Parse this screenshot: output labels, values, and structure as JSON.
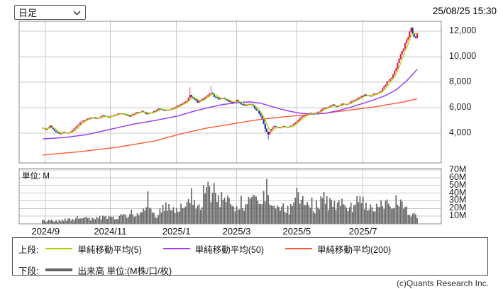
{
  "header": {
    "period_selector": {
      "value": "日足"
    },
    "timestamp": "25/08/25 15:30"
  },
  "footer": {
    "credit": "(c)Quants Research Inc."
  },
  "legend": {
    "upper_label": "上段:",
    "lower_label": "下段:",
    "ma_items": [
      {
        "label": "単純移動平均(5)",
        "color": "#a8d400"
      },
      {
        "label": "単純移動平均(50)",
        "color": "#9a3ff0"
      },
      {
        "label": "単純移動平均(200)",
        "color": "#fa5a35"
      }
    ],
    "volume_item": {
      "label": "出来高 単位:(M株/口/枚)",
      "color": "#666666"
    }
  },
  "chart_data": {
    "type": "candlestick+bar",
    "period": "daily",
    "days": 250,
    "colors": {
      "up": "#e8184a",
      "down": "#1f329e",
      "volume": "#666666",
      "grid": "#c8c8c8",
      "border": "#8a8a8a",
      "ma5": "#a8d400",
      "ma50": "#9a3ff0",
      "ma200": "#fa5a35"
    },
    "price_axis": {
      "ticks": [
        12000,
        10000,
        8000,
        6000,
        4000
      ],
      "tick_labels": [
        "12,000",
        "10,000",
        "8,000",
        "6,000",
        "4,000"
      ]
    },
    "volume_axis": {
      "ticks": [
        70,
        60,
        50,
        40,
        30,
        20,
        10
      ],
      "tick_labels": [
        "70M",
        "60M",
        "50M",
        "40M",
        "30M",
        "20M",
        "10M"
      ],
      "unit_label": "単位: M"
    },
    "time_axis": {
      "tick_labels": [
        "2024/9",
        "2024/11",
        "2025/1",
        "2025/3",
        "2025/5",
        "2025/7"
      ],
      "tick_day_index": [
        2,
        45,
        89,
        129,
        169,
        213
      ]
    },
    "candles": {
      "close_keypoints": [
        [
          0,
          4450
        ],
        [
          2,
          4300
        ],
        [
          5,
          4550
        ],
        [
          8,
          4200
        ],
        [
          11,
          3950
        ],
        [
          14,
          4060
        ],
        [
          17,
          4000
        ],
        [
          20,
          4250
        ],
        [
          23,
          4600
        ],
        [
          26,
          4950
        ],
        [
          29,
          5100
        ],
        [
          33,
          5250
        ],
        [
          36,
          5150
        ],
        [
          40,
          5350
        ],
        [
          44,
          5250
        ],
        [
          48,
          5450
        ],
        [
          52,
          5560
        ],
        [
          55,
          5420
        ],
        [
          58,
          5350
        ],
        [
          62,
          5600
        ],
        [
          66,
          5720
        ],
        [
          69,
          5520
        ],
        [
          73,
          5650
        ],
        [
          77,
          5900
        ],
        [
          81,
          5760
        ],
        [
          85,
          5860
        ],
        [
          89,
          6100
        ],
        [
          93,
          6350
        ],
        [
          96,
          6500
        ],
        [
          98,
          7050
        ],
        [
          100,
          6700
        ],
        [
          103,
          6450
        ],
        [
          106,
          6650
        ],
        [
          109,
          6900
        ],
        [
          112,
          7200
        ],
        [
          114,
          6900
        ],
        [
          117,
          6650
        ],
        [
          120,
          6760
        ],
        [
          123,
          6520
        ],
        [
          126,
          6420
        ],
        [
          129,
          6550
        ],
        [
          132,
          6300
        ],
        [
          135,
          6160
        ],
        [
          138,
          6320
        ],
        [
          141,
          5950
        ],
        [
          144,
          5550
        ],
        [
          146,
          5100
        ],
        [
          148,
          4350
        ],
        [
          150,
          3900
        ],
        [
          152,
          4350
        ],
        [
          154,
          4520
        ],
        [
          157,
          4420
        ],
        [
          160,
          4560
        ],
        [
          163,
          4470
        ],
        [
          166,
          4620
        ],
        [
          169,
          4900
        ],
        [
          172,
          5250
        ],
        [
          175,
          5450
        ],
        [
          178,
          5600
        ],
        [
          181,
          5520
        ],
        [
          184,
          5700
        ],
        [
          187,
          5950
        ],
        [
          190,
          6060
        ],
        [
          193,
          6200
        ],
        [
          196,
          6120
        ],
        [
          199,
          6300
        ],
        [
          202,
          6220
        ],
        [
          205,
          6450
        ],
        [
          208,
          6650
        ],
        [
          211,
          6850
        ],
        [
          214,
          7000
        ],
        [
          217,
          6900
        ],
        [
          220,
          7050
        ],
        [
          223,
          7120
        ],
        [
          225,
          7300
        ],
        [
          227,
          7650
        ],
        [
          229,
          8000
        ],
        [
          231,
          8250
        ],
        [
          233,
          8560
        ],
        [
          235,
          9100
        ],
        [
          237,
          9800
        ],
        [
          239,
          10400
        ],
        [
          241,
          11000
        ],
        [
          243,
          11600
        ],
        [
          245,
          12200
        ],
        [
          246,
          11900
        ],
        [
          247,
          11560
        ],
        [
          248,
          11500
        ],
        [
          249,
          11760
        ]
      ],
      "high_overrides": [
        [
          98,
          7600
        ],
        [
          112,
          7700
        ],
        [
          145,
          5600
        ],
        [
          245,
          12330
        ]
      ],
      "low_overrides": [
        [
          148,
          4050
        ],
        [
          150,
          3520
        ]
      ]
    },
    "moving_averages": [
      {
        "name": "単純移動平均(5)",
        "window": 5,
        "color": "#a8d400",
        "source": "computed"
      },
      {
        "name": "単純移動平均(50)",
        "color": "#9a3ff0",
        "keypoints": [
          [
            0,
            3550
          ],
          [
            15,
            3660
          ],
          [
            30,
            3900
          ],
          [
            45,
            4300
          ],
          [
            60,
            4700
          ],
          [
            75,
            5000
          ],
          [
            90,
            5350
          ],
          [
            100,
            5700
          ],
          [
            110,
            6000
          ],
          [
            120,
            6250
          ],
          [
            130,
            6400
          ],
          [
            138,
            6450
          ],
          [
            145,
            6350
          ],
          [
            152,
            6100
          ],
          [
            158,
            5900
          ],
          [
            165,
            5700
          ],
          [
            172,
            5560
          ],
          [
            180,
            5500
          ],
          [
            188,
            5560
          ],
          [
            196,
            5760
          ],
          [
            204,
            6000
          ],
          [
            212,
            6300
          ],
          [
            220,
            6600
          ],
          [
            228,
            6950
          ],
          [
            235,
            7400
          ],
          [
            242,
            8100
          ],
          [
            249,
            9000
          ]
        ]
      },
      {
        "name": "単純移動平均(200)",
        "color": "#fa5a35",
        "keypoints": [
          [
            0,
            2280
          ],
          [
            25,
            2550
          ],
          [
            50,
            2900
          ],
          [
            75,
            3400
          ],
          [
            92,
            3950
          ],
          [
            110,
            4420
          ],
          [
            125,
            4700
          ],
          [
            140,
            5000
          ],
          [
            150,
            5150
          ],
          [
            160,
            5280
          ],
          [
            170,
            5380
          ],
          [
            180,
            5500
          ],
          [
            190,
            5600
          ],
          [
            200,
            5750
          ],
          [
            210,
            5900
          ],
          [
            220,
            6050
          ],
          [
            230,
            6250
          ],
          [
            240,
            6450
          ],
          [
            249,
            6700
          ]
        ]
      }
    ],
    "volume": {
      "unit": "M",
      "keypoints": [
        [
          0,
          4
        ],
        [
          5,
          5
        ],
        [
          10,
          4
        ],
        [
          15,
          5
        ],
        [
          20,
          6
        ],
        [
          25,
          8
        ],
        [
          30,
          6
        ],
        [
          35,
          7
        ],
        [
          40,
          9
        ],
        [
          45,
          7
        ],
        [
          50,
          8
        ],
        [
          55,
          10
        ],
        [
          58,
          14
        ],
        [
          62,
          9
        ],
        [
          66,
          12
        ],
        [
          70,
          30
        ],
        [
          72,
          14
        ],
        [
          76,
          12
        ],
        [
          80,
          18
        ],
        [
          84,
          22
        ],
        [
          88,
          14
        ],
        [
          92,
          25
        ],
        [
          95,
          18
        ],
        [
          98,
          40
        ],
        [
          100,
          28
        ],
        [
          103,
          22
        ],
        [
          106,
          30
        ],
        [
          109,
          69
        ],
        [
          111,
          35
        ],
        [
          113,
          45
        ],
        [
          116,
          28
        ],
        [
          119,
          32
        ],
        [
          122,
          25
        ],
        [
          125,
          30
        ],
        [
          128,
          22
        ],
        [
          131,
          28
        ],
        [
          134,
          20
        ],
        [
          137,
          25
        ],
        [
          140,
          30
        ],
        [
          143,
          26
        ],
        [
          146,
          30
        ],
        [
          148,
          44
        ],
        [
          150,
          40
        ],
        [
          152,
          28
        ],
        [
          155,
          22
        ],
        [
          158,
          18
        ],
        [
          161,
          20
        ],
        [
          164,
          16
        ],
        [
          167,
          22
        ],
        [
          170,
          44
        ],
        [
          172,
          30
        ],
        [
          175,
          24
        ],
        [
          178,
          28
        ],
        [
          181,
          20
        ],
        [
          184,
          26
        ],
        [
          187,
          32
        ],
        [
          190,
          24
        ],
        [
          193,
          28
        ],
        [
          196,
          20
        ],
        [
          199,
          24
        ],
        [
          202,
          18
        ],
        [
          205,
          22
        ],
        [
          208,
          26
        ],
        [
          211,
          30
        ],
        [
          214,
          22
        ],
        [
          217,
          26
        ],
        [
          220,
          18
        ],
        [
          223,
          20
        ],
        [
          226,
          24
        ],
        [
          229,
          28
        ],
        [
          232,
          24
        ],
        [
          235,
          30
        ],
        [
          238,
          26
        ],
        [
          240,
          22
        ],
        [
          242,
          18
        ],
        [
          244,
          15
        ],
        [
          246,
          12
        ],
        [
          248,
          10
        ],
        [
          249,
          9
        ]
      ]
    }
  }
}
